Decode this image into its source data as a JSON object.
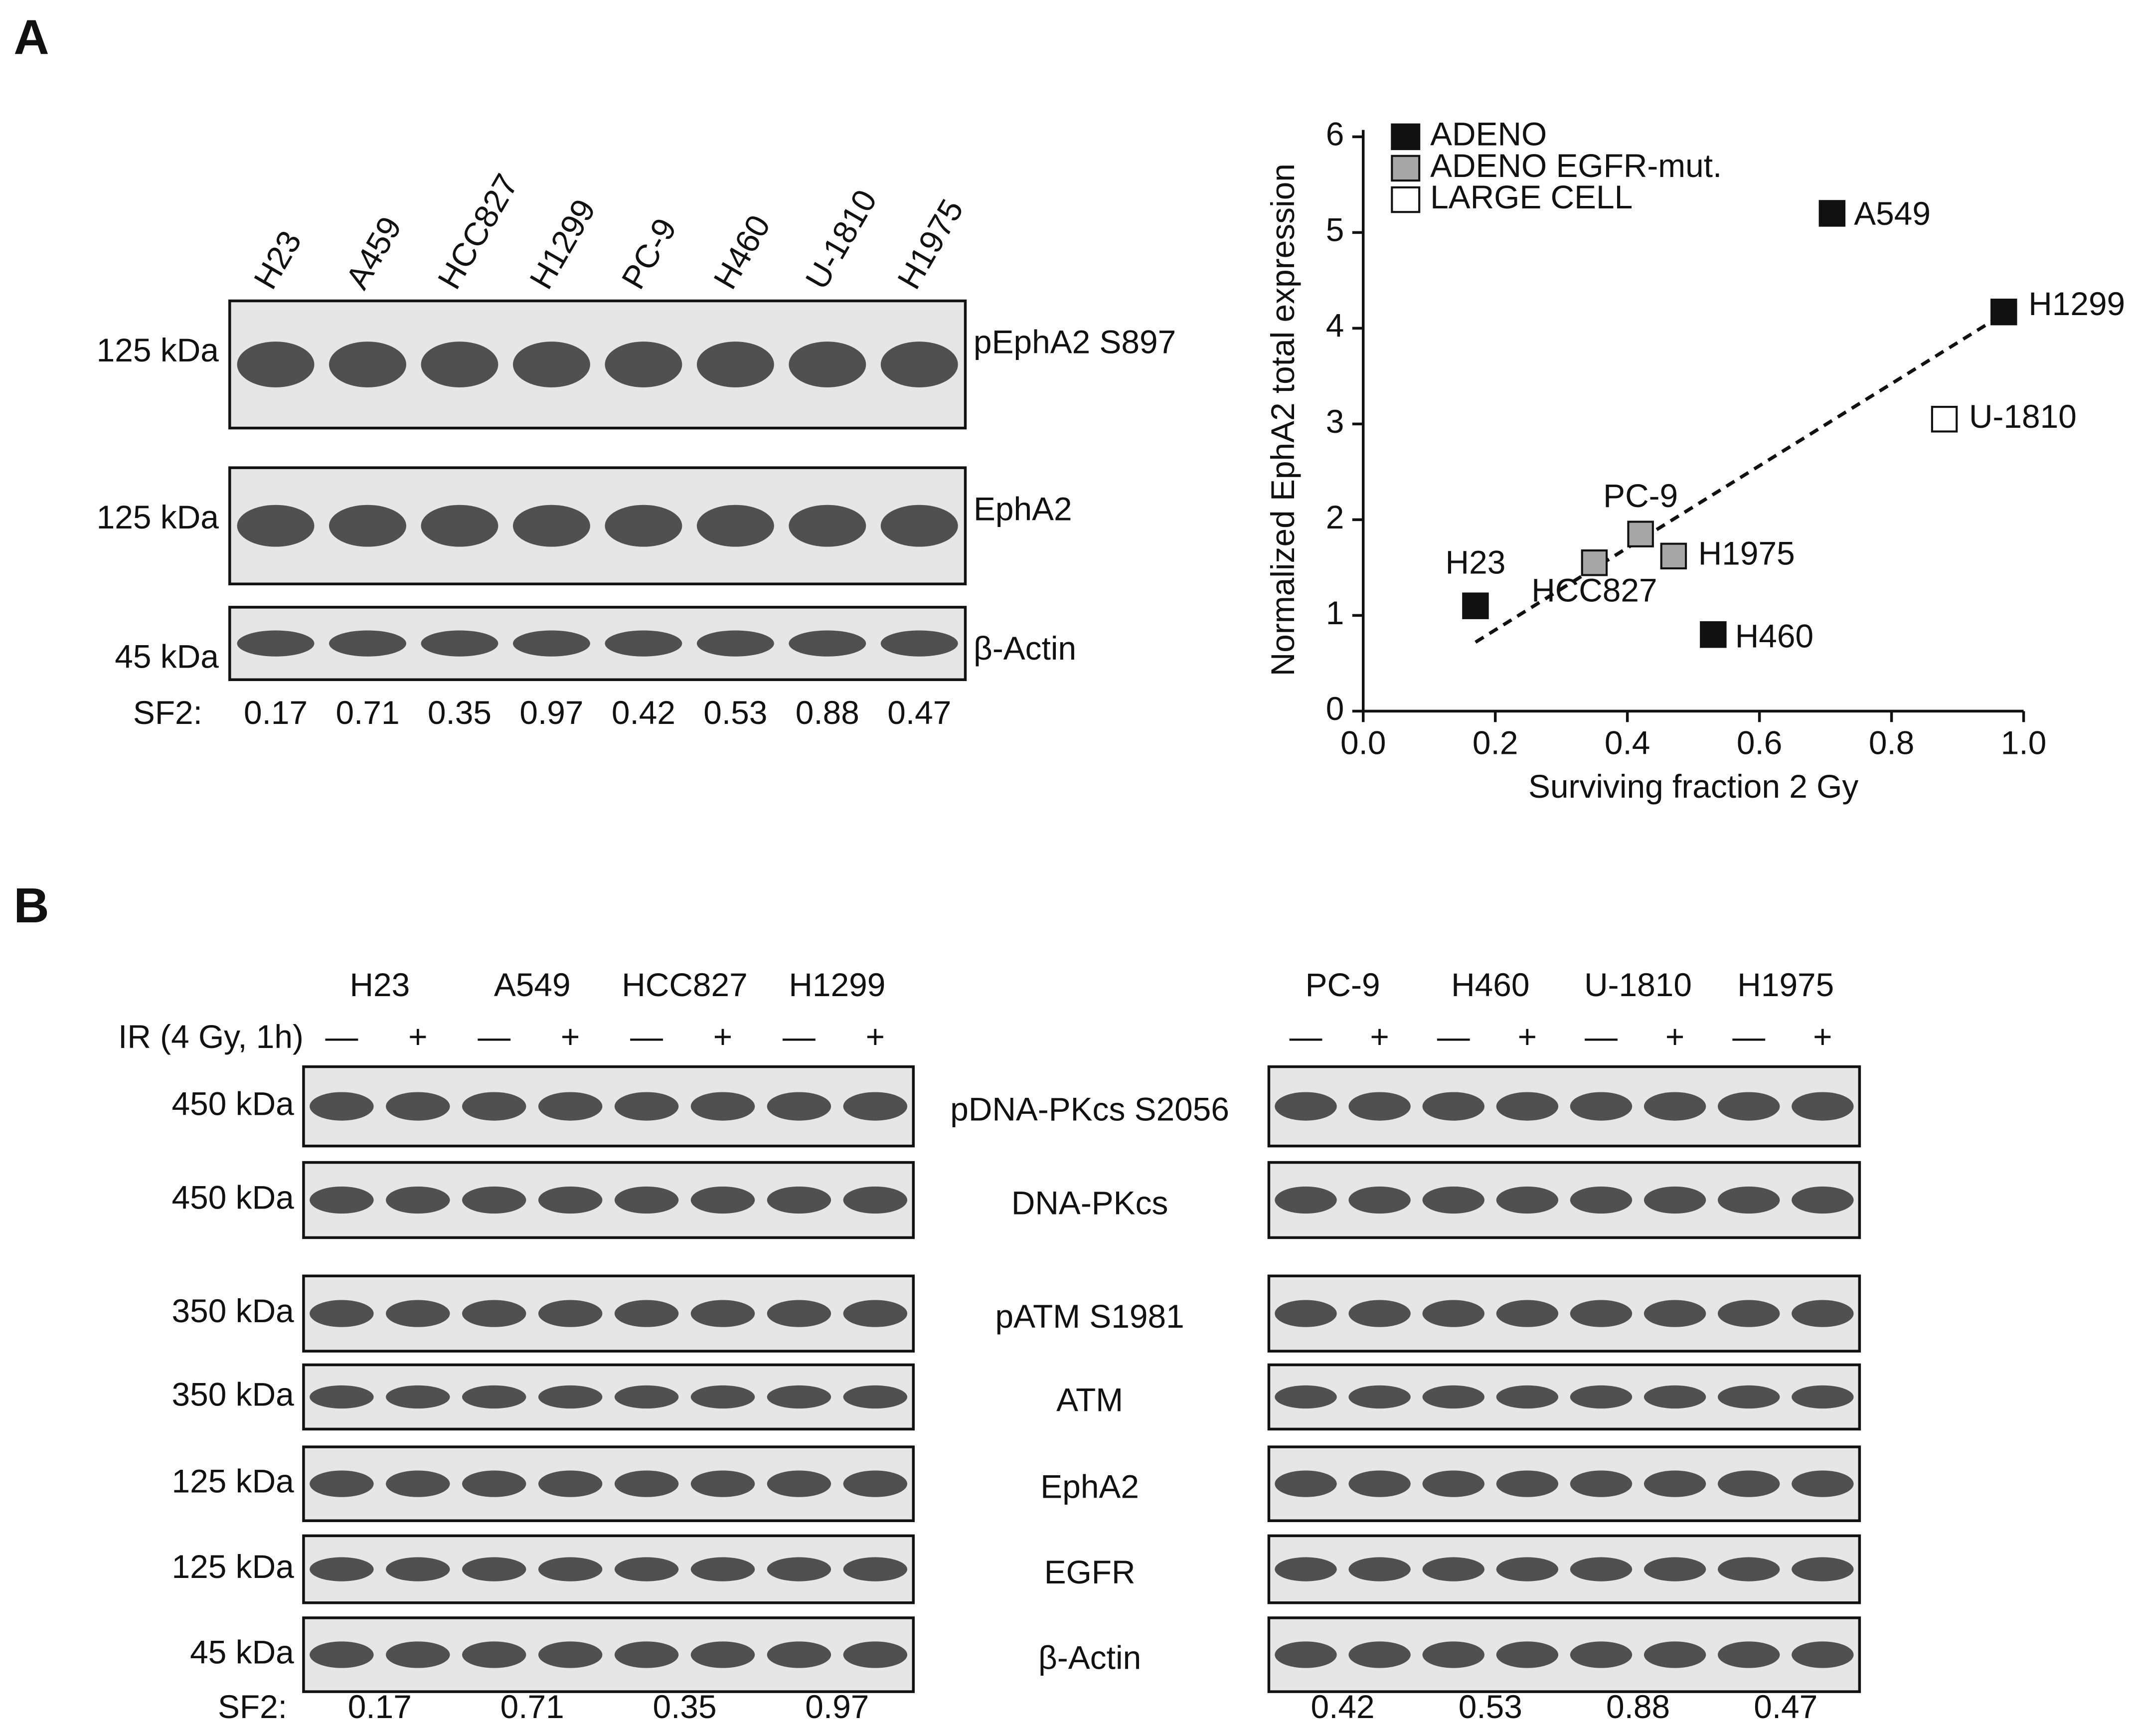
{
  "panel_a": {
    "label": "A",
    "blot": {
      "lanes": [
        "H23",
        "A459",
        "HCC827",
        "H1299",
        "PC-9",
        "H460",
        "U-1810",
        "H1975"
      ],
      "rows": [
        {
          "size": "125 kDa",
          "name": "pEphA2 S897"
        },
        {
          "size": "125 kDa",
          "name": "EphA2"
        },
        {
          "size": "45 kDa",
          "name": "β-Actin"
        }
      ],
      "sf2_label": "SF2:",
      "sf2": [
        0.17,
        0.71,
        0.35,
        0.97,
        0.42,
        0.53,
        0.88,
        0.47
      ]
    }
  },
  "chart_data": {
    "type": "scatter",
    "x_label": "Surviving fraction 2 Gy",
    "y_label": "Normalized EphA2 total expression",
    "xlim": [
      0,
      1
    ],
    "xticks": [
      {
        "value": 0,
        "label": "0.0"
      },
      0.2,
      0.4,
      0.6,
      0.8,
      {
        "value": 1,
        "label": "1.0"
      }
    ],
    "ylim": [
      0,
      6
    ],
    "yticks": [
      0,
      1,
      2,
      3,
      4,
      5,
      6
    ],
    "legend": "top-left",
    "series": [
      {
        "name": "ADENO",
        "color": "#111111",
        "x": [
          0.17,
          0.71,
          0.97,
          0.53
        ],
        "values": [
          1.1,
          5.2,
          4.17,
          0.8
        ],
        "labels": [
          "H23",
          "A549",
          "H1299",
          "H460"
        ]
      },
      {
        "name": "ADENO EGFR-mut.",
        "color": "#a6a6a6",
        "x": [
          0.35,
          0.42,
          0.47
        ],
        "values": [
          1.55,
          1.85,
          1.62
        ],
        "labels": [
          "HCC827",
          "PC-9",
          "H1975"
        ]
      },
      {
        "name": "LARGE CELL",
        "color": "#ffffff",
        "x": [
          0.88
        ],
        "values": [
          3.05
        ],
        "labels": [
          "U-1810"
        ]
      }
    ],
    "trendline": {
      "x": [
        0.17,
        0.97
      ],
      "y": [
        0.72,
        4.15
      ]
    }
  },
  "panel_b": {
    "label": "B",
    "treatment_label": "IR (4 Gy, 1h)",
    "treatments": [
      "—",
      "+"
    ],
    "row_names": [
      "pDNA-PKcs S2056",
      "DNA-PKcs",
      "pATM S1981",
      "ATM",
      "EphA2",
      "EGFR",
      "β-Actin"
    ],
    "sizes": [
      "450 kDa",
      "450 kDa",
      "350 kDa",
      "350 kDa",
      "125 kDa",
      "125 kDa",
      "45 kDa"
    ],
    "sf2_label": "SF2:",
    "blots": [
      {
        "lanes": [
          "H23",
          "A549",
          "HCC827",
          "H1299"
        ],
        "sf2": [
          0.17,
          0.71,
          0.35,
          0.97
        ]
      },
      {
        "lanes": [
          "PC-9",
          "H460",
          "U-1810",
          "H1975"
        ],
        "sf2": [
          0.42,
          0.53,
          0.88,
          0.47
        ]
      }
    ]
  }
}
